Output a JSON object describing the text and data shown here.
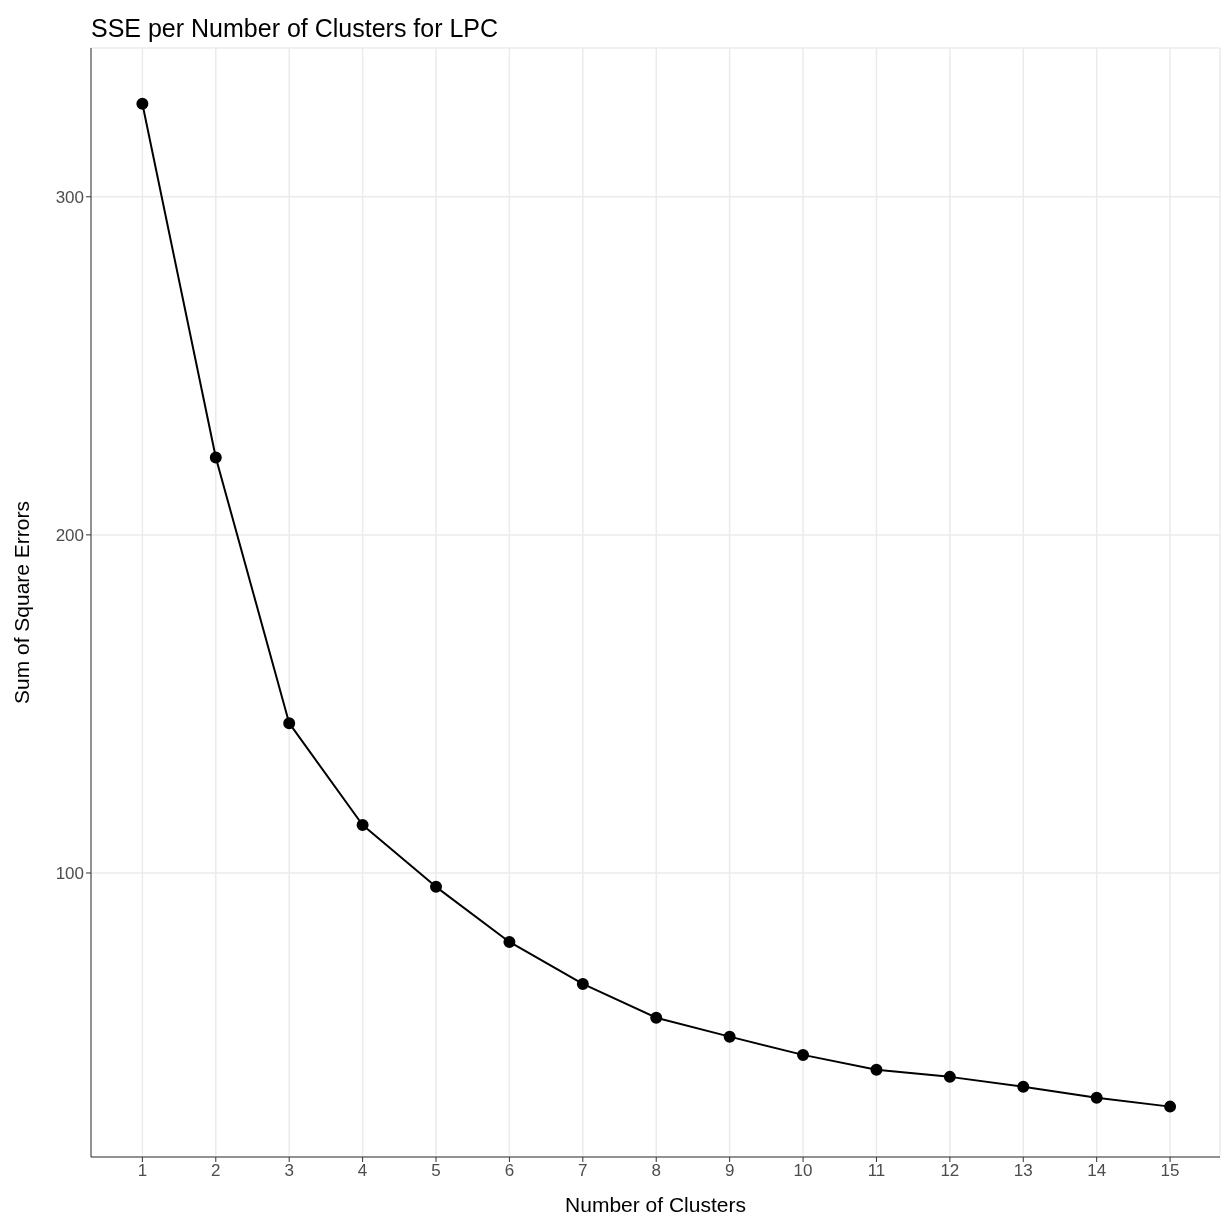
{
  "chart_data": {
    "type": "line",
    "title": "SSE per Number of Clusters for LPC",
    "xlabel": "Number of Clusters",
    "ylabel": "Sum of Square Errors",
    "x": [
      1,
      2,
      3,
      4,
      5,
      6,
      7,
      8,
      9,
      10,
      11,
      12,
      13,
      14,
      15
    ],
    "series": [
      {
        "color": "#000000",
        "values": [
          327.5,
          222.9,
          144.3,
          114.2,
          95.9,
          79.6,
          67.2,
          57.2,
          51.6,
          46.2,
          41.8,
          39.7,
          36.8,
          33.5,
          30.9
        ]
      }
    ],
    "xlim": [
      0.3,
      15.68
    ],
    "xticks": [
      1,
      2,
      3,
      4,
      5,
      6,
      7,
      8,
      9,
      10,
      11,
      12,
      13,
      14,
      15
    ],
    "ylim": [
      16,
      344
    ],
    "yticks": [
      100,
      200,
      300
    ],
    "grid": true,
    "legend": false,
    "marker": "circle",
    "line_style": "solid"
  }
}
